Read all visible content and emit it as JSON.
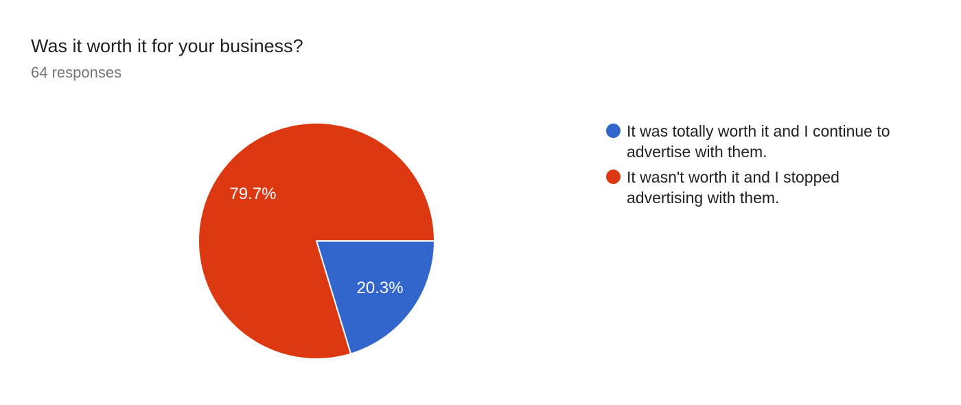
{
  "header": {
    "title": "Was it worth it for your business?",
    "subtitle": "64 responses"
  },
  "chart_data": {
    "type": "pie",
    "title": "Was it worth it for your business?",
    "responses_label": "64 responses",
    "total_responses": 64,
    "start_angle_deg": 0,
    "direction": "clockwise",
    "legend_position": "right",
    "slice_border_color": "#ffffff",
    "label_color": "#ffffff",
    "slices": [
      {
        "label": "It was totally worth it and I continue to advertise with them.",
        "pct": 20.3,
        "display_pct": "20.3%",
        "color": "#3366cc"
      },
      {
        "label": "It wasn't worth it and I stopped advertising with them.",
        "pct": 79.7,
        "display_pct": "79.7%",
        "color": "#dc3912"
      }
    ]
  },
  "colors": {
    "background": "#ffffff",
    "title_text": "#212121",
    "subtitle_text": "#757575",
    "legend_text": "#212121"
  }
}
